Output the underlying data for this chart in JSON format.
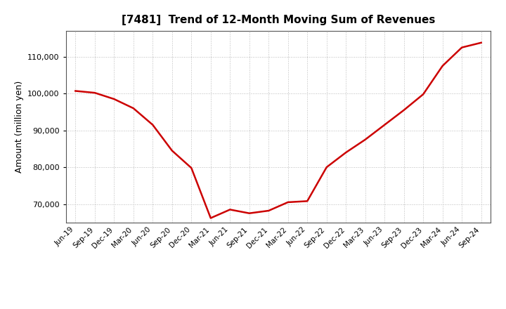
{
  "title": "[7481]  Trend of 12-Month Moving Sum of Revenues",
  "ylabel": "Amount (million yen)",
  "line_color": "#cc0000",
  "line_width": 1.8,
  "background_color": "#ffffff",
  "grid_color": "#bbbbbb",
  "ylim": [
    65000,
    117000
  ],
  "yticks": [
    70000,
    80000,
    90000,
    100000,
    110000
  ],
  "x_labels": [
    "Jun-19",
    "Sep-19",
    "Dec-19",
    "Mar-20",
    "Jun-20",
    "Sep-20",
    "Dec-20",
    "Mar-21",
    "Jun-21",
    "Sep-21",
    "Dec-21",
    "Mar-22",
    "Jun-22",
    "Sep-22",
    "Dec-22",
    "Mar-23",
    "Jun-23",
    "Sep-23",
    "Dec-23",
    "Mar-24",
    "Jun-24",
    "Sep-24"
  ],
  "values": [
    100700,
    100200,
    98500,
    96000,
    91500,
    84500,
    79800,
    66200,
    68500,
    67500,
    68200,
    70500,
    70800,
    80000,
    84000,
    87500,
    91500,
    95500,
    99800,
    107500,
    112500,
    113800
  ]
}
